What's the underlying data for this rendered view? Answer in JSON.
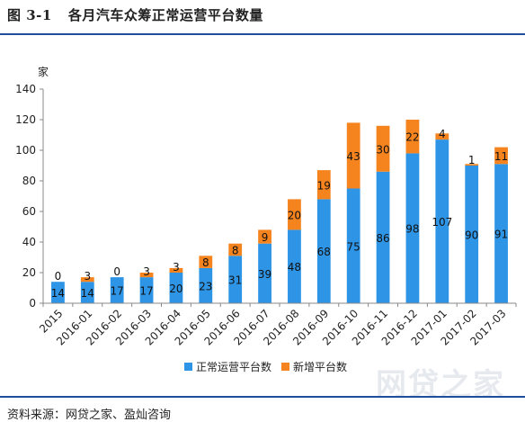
{
  "header": {
    "figure_no": "图 3-1",
    "title": "各月汽车众筹正常运营平台数量"
  },
  "footer": {
    "source": "资料来源：网贷之家、盈灿咨询"
  },
  "watermark": {
    "text": "网贷之家"
  },
  "chart_data": {
    "type": "bar",
    "stacked": true,
    "ylabel": "家",
    "ylim": [
      0,
      140
    ],
    "yticks": [
      0,
      20,
      40,
      60,
      80,
      100,
      120,
      140
    ],
    "categories": [
      "2015",
      "2016-01",
      "2016-02",
      "2016-03",
      "2016-04",
      "2016-05",
      "2016-06",
      "2016-07",
      "2016-08",
      "2016-09",
      "2016-10",
      "2016-11",
      "2016-12",
      "2017-01",
      "2017-02",
      "2017-03"
    ],
    "series": [
      {
        "name": "正常运营平台数",
        "color": "#2e95e6",
        "values": [
          14,
          14,
          17,
          17,
          20,
          23,
          31,
          39,
          48,
          68,
          75,
          86,
          98,
          107,
          90,
          91
        ]
      },
      {
        "name": "新增平台数",
        "color": "#f5841f",
        "values": [
          0,
          3,
          0,
          3,
          3,
          8,
          8,
          9,
          20,
          19,
          43,
          30,
          22,
          4,
          1,
          11
        ]
      }
    ],
    "legend": "bottom-center",
    "grid": false
  }
}
